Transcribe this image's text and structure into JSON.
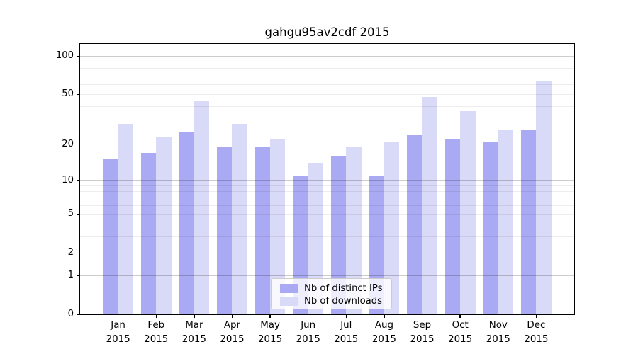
{
  "window": {
    "title": "gahgu95av2cdf 2015"
  },
  "chart_data": {
    "type": "bar",
    "title": "gahgu95av2cdf 2015",
    "categories": [
      "Jan",
      "Feb",
      "Mar",
      "Apr",
      "May",
      "Jun",
      "Jul",
      "Aug",
      "Sep",
      "Oct",
      "Nov",
      "Dec"
    ],
    "x_tick_year": "2015",
    "series": [
      {
        "name": "Nb of distinct IPs",
        "color": "#a9a9f4",
        "values": [
          15,
          17,
          25,
          19,
          19,
          11,
          16,
          11,
          24,
          22,
          21,
          26
        ]
      },
      {
        "name": "Nb of downloads",
        "color": "#d9d9f8",
        "values": [
          29,
          23,
          44,
          29,
          22,
          14,
          19,
          21,
          48,
          37,
          26,
          64
        ]
      }
    ],
    "xlabel": "",
    "ylabel": "",
    "y_scale": "log1p",
    "ylim": [
      0,
      125
    ],
    "y_ticks": [
      0,
      1,
      2,
      5,
      10,
      20,
      50,
      100
    ],
    "y_major_gridlines": [
      1,
      10,
      100
    ],
    "y_minor_gridlines": [
      2,
      3,
      4,
      5,
      6,
      7,
      8,
      9,
      20,
      30,
      40,
      50,
      60,
      70,
      80,
      90
    ],
    "grid": true,
    "legend_position": "lower center"
  },
  "colors": {
    "background": "#ffffff",
    "spine": "#000000",
    "grid_major": "#cccccc",
    "grid_minor": "#ededed",
    "legend_border": "#cccccc",
    "legend_background": "rgba(255,255,255,0.8)"
  }
}
